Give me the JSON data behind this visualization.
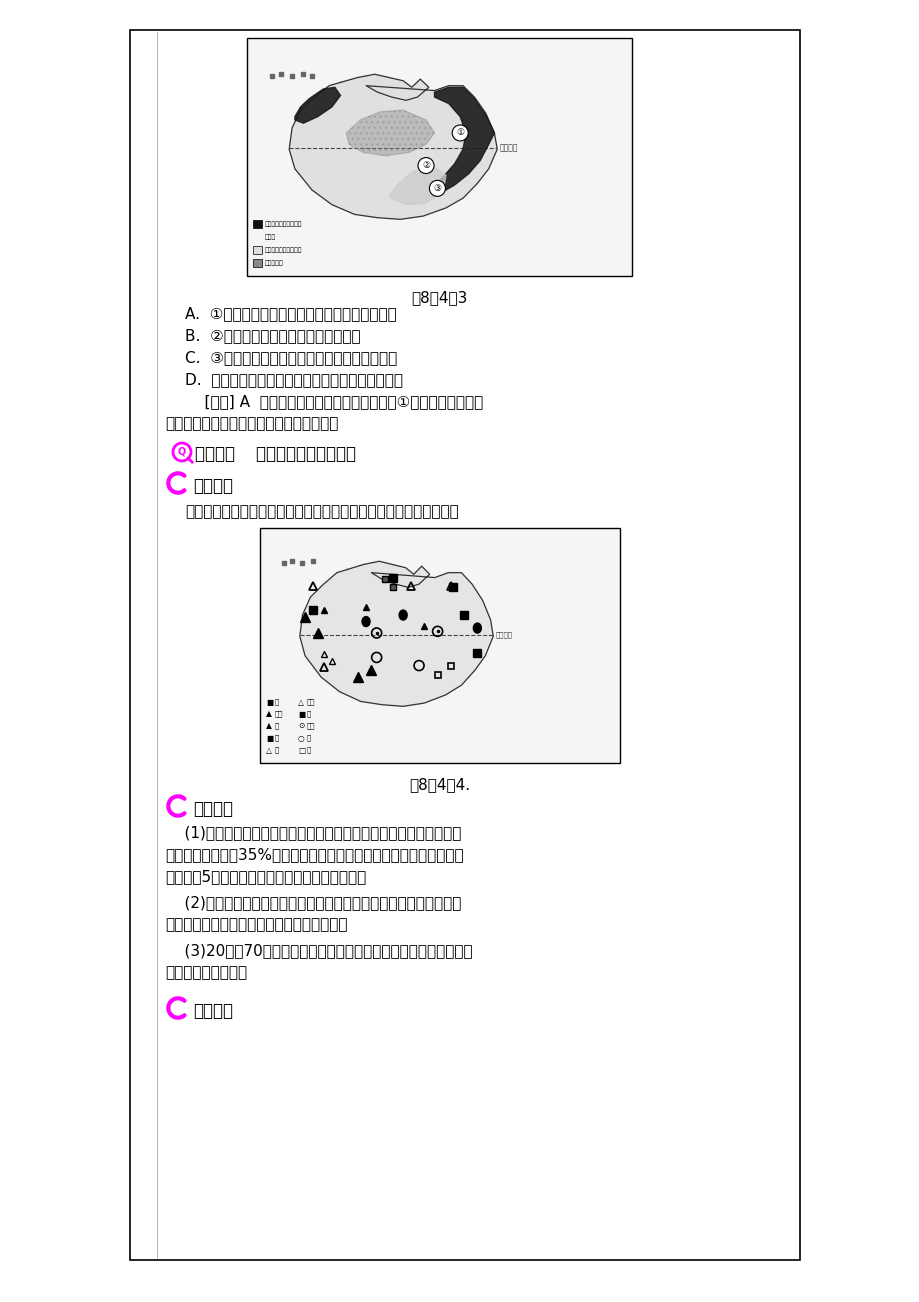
{
  "bg_color": "#ffffff",
  "border_color": "#000000",
  "magenta": "#FF00FF",
  "fig1_caption": "图8－4－3",
  "fig2_caption": "图8－4－4.",
  "section_title1": "探究点二    澳大利亚工矿业的发展",
  "subsection1": "问题导入",
  "intro_text": "下图是澳大利亚矿产分布图，据图说明澳大利亚的矿产资源的特点。",
  "subsection2": "知识链接",
  "para1a": "    (1)丰富的矿产资源：澳大利亚矿产资源种类较多，其中铝土矿的储",
  "para1b": "量占世界总储量的35%，居世界首位；铁矿、镍矿、锌矿和锰矿的储量",
  "para1c": "居世界前5位；是世界主要的铁矿和煤炭出口国。",
  "para2a": "    (2)发达的冶金工业：依靠丰富的矿产资源，澳大利亚的冶金和机械",
  "para2b": "工业发达，分布主要靠近原料和燃料的产地。",
  "para3a": "    (3)20世纪70年代以来，服务业的产值超过了农牧业和工矿业，成",
  "para3b": "为国民经济的支柱。",
  "subsection3": "拓展应用",
  "options_A": "A.  ①地区地下水丰富，人工草场广布，生产稳定",
  "options_B": "B.  ②地区灌溉系统完善，多为人工草场",
  "options_C": "C.  ③地区降水丰富，农牧场规模小，牧草产量高",
  "options_D": "D.  三个牧羊带的分布都与地形、气候因素密切相关",
  "analysis1": "    [解析] A  本题主要考查澳大利亚的牧羊带。①地区地下水丰富，",
  "analysis2": "多为天然草场，牧草品质差，生产不稳定。",
  "leg1_items": [
    [
      "#111111",
      "羊、牛与经济作物混合"
    ],
    [
      null,
      "经营带"
    ],
    [
      "#dddddd",
      "细羊与小麦混合经营带"
    ],
    [
      "#888888",
      "粗放牧羊带"
    ]
  ],
  "leg2_col1": [
    [
      "■",
      "煤"
    ],
    [
      "▲",
      "石油"
    ],
    [
      "▲",
      "铁"
    ],
    [
      "■",
      "锰"
    ],
    [
      "△",
      "镍"
    ]
  ],
  "leg2_col2": [
    [
      "△",
      "铝土"
    ],
    [
      "■",
      "铜"
    ],
    [
      "⊙",
      "铅锌"
    ],
    [
      "○",
      "金"
    ],
    [
      "□",
      "铀"
    ]
  ]
}
